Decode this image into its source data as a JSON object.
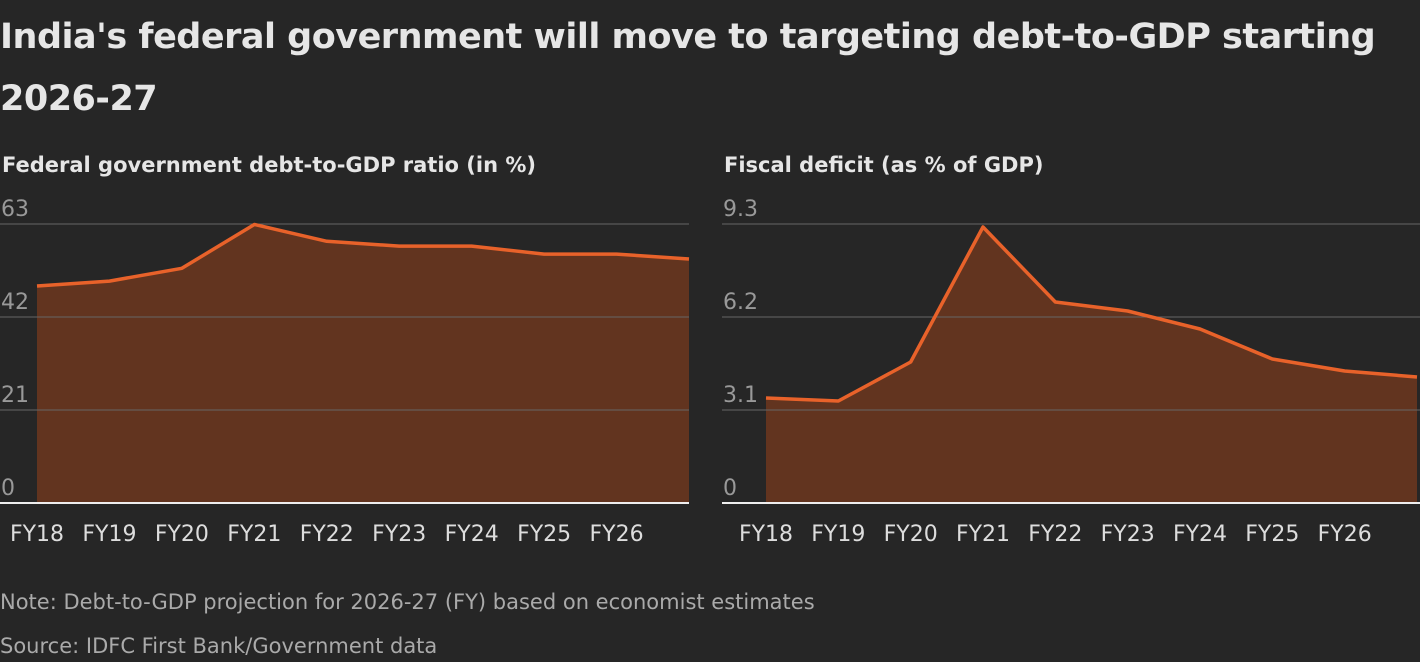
{
  "title": "India's federal government will move to targeting debt-to-GDP starting 2026-27",
  "note": "Note: Debt-to-GDP projection for 2026-27 (FY) based on economist estimates",
  "source": "Source: IDFC First Bank/Government data",
  "chart_data": [
    {
      "type": "area",
      "title": "Federal government debt-to-GDP ratio (in %)",
      "categories": [
        "FY18",
        "FY19",
        "FY20",
        "FY21",
        "FY22",
        "FY23",
        "FY24",
        "FY25",
        "FY26",
        null
      ],
      "values": [
        49.0,
        50.1,
        53.0,
        62.9,
        59.1,
        58.0,
        58.0,
        56.2,
        56.2,
        55.1
      ],
      "ylim": [
        0,
        63
      ],
      "yticks": [
        0,
        21,
        42,
        63
      ],
      "grid": true,
      "color": "#e8622a",
      "fill": "#62341f"
    },
    {
      "type": "area",
      "title": "Fiscal deficit (as % of GDP)",
      "categories": [
        "FY18",
        "FY19",
        "FY20",
        "FY21",
        "FY22",
        "FY23",
        "FY24",
        "FY25",
        "FY26",
        null
      ],
      "values": [
        3.5,
        3.4,
        4.7,
        9.2,
        6.7,
        6.4,
        5.8,
        4.8,
        4.4,
        4.2
      ],
      "ylim": [
        0,
        9.3
      ],
      "yticks": [
        0,
        3.1,
        6.2,
        9.3
      ],
      "grid": true,
      "color": "#e8622a",
      "fill": "#62341f"
    }
  ]
}
